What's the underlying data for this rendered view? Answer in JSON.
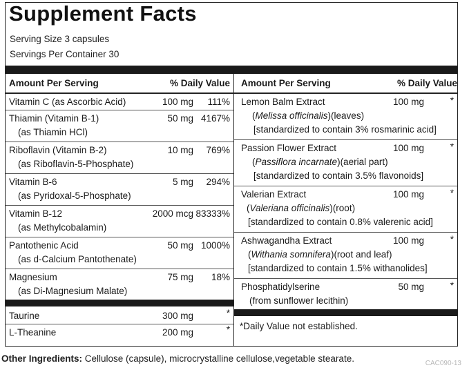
{
  "panel": {
    "title": "Supplement Facts",
    "serving_size": "Serving Size 3 capsules",
    "servings_per_container": "Servings Per Container 30"
  },
  "headers": {
    "amount_per_serving": "Amount Per Serving",
    "daily_value": "% Daily Value"
  },
  "left_rows": [
    {
      "name": "Vitamin C (as Ascorbic Acid)",
      "sub": "",
      "amount": "100 mg",
      "dv": "111%"
    },
    {
      "name": "Thiamin (Vitamin B-1)",
      "sub": "(as Thiamin HCl)",
      "amount": "50 mg",
      "dv": "4167%"
    },
    {
      "name": "Riboflavin (Vitamin B-2)",
      "sub": "(as Riboflavin-5-Phosphate)",
      "amount": "10 mg",
      "dv": "769%"
    },
    {
      "name": "Vitamin B-6",
      "sub": "(as Pyridoxal-5-Phosphate)",
      "amount": "5 mg",
      "dv": "294%"
    },
    {
      "name": "Vitamin B-12",
      "sub": "(as Methylcobalamin)",
      "amount": "2000 mcg",
      "dv": "83333%"
    },
    {
      "name": "Pantothenic Acid",
      "sub": "(as d-Calcium Pantothenate)",
      "amount": "50 mg",
      "dv": "1000%"
    },
    {
      "name": "Magnesium",
      "sub": "(as Di-Magnesium Malate)",
      "amount": "75 mg",
      "dv": "18%"
    }
  ],
  "left_rows_2": [
    {
      "name": "Taurine",
      "amount": "300 mg",
      "dv": "*"
    },
    {
      "name": "L-Theanine",
      "amount": "200 mg",
      "dv": "*"
    }
  ],
  "right_rows": [
    {
      "name": "Lemon Balm Extract",
      "latin": "Melissa officinalis",
      "part": "(leaves)",
      "std": "[standardized to contain 3% rosmarinic acid]",
      "amount": "100 mg",
      "dv": "*"
    },
    {
      "name": "Passion Flower Extract",
      "latin": "Passiflora incarnate",
      "part": "(aerial part)",
      "std": "[standardized to contain 3.5% flavonoids]",
      "amount": "100 mg",
      "dv": "*"
    },
    {
      "name": "Valerian Extract",
      "latin": "Valeriana officinalis",
      "part": "(root)",
      "std": "[standardized to contain 0.8% valerenic acid]",
      "amount": "100 mg",
      "dv": "*"
    },
    {
      "name": "Ashwagandha Extract",
      "latin": "Withania somnifera",
      "part": "(root and leaf)",
      "std": "[standardized to contain 1.5% withanolides]",
      "amount": "100 mg",
      "dv": "*"
    },
    {
      "name": "Phosphatidylserine",
      "sub": "(from sunflower lecithin)",
      "amount": "50 mg",
      "dv": "*"
    }
  ],
  "footnote": "*Daily Value not established.",
  "other_ingredients": {
    "label": "Other Ingredients:",
    "text": " Cellulose (capsule), microcrystalline cellulose,vegetable stearate."
  },
  "product_code": "CAC090-13"
}
